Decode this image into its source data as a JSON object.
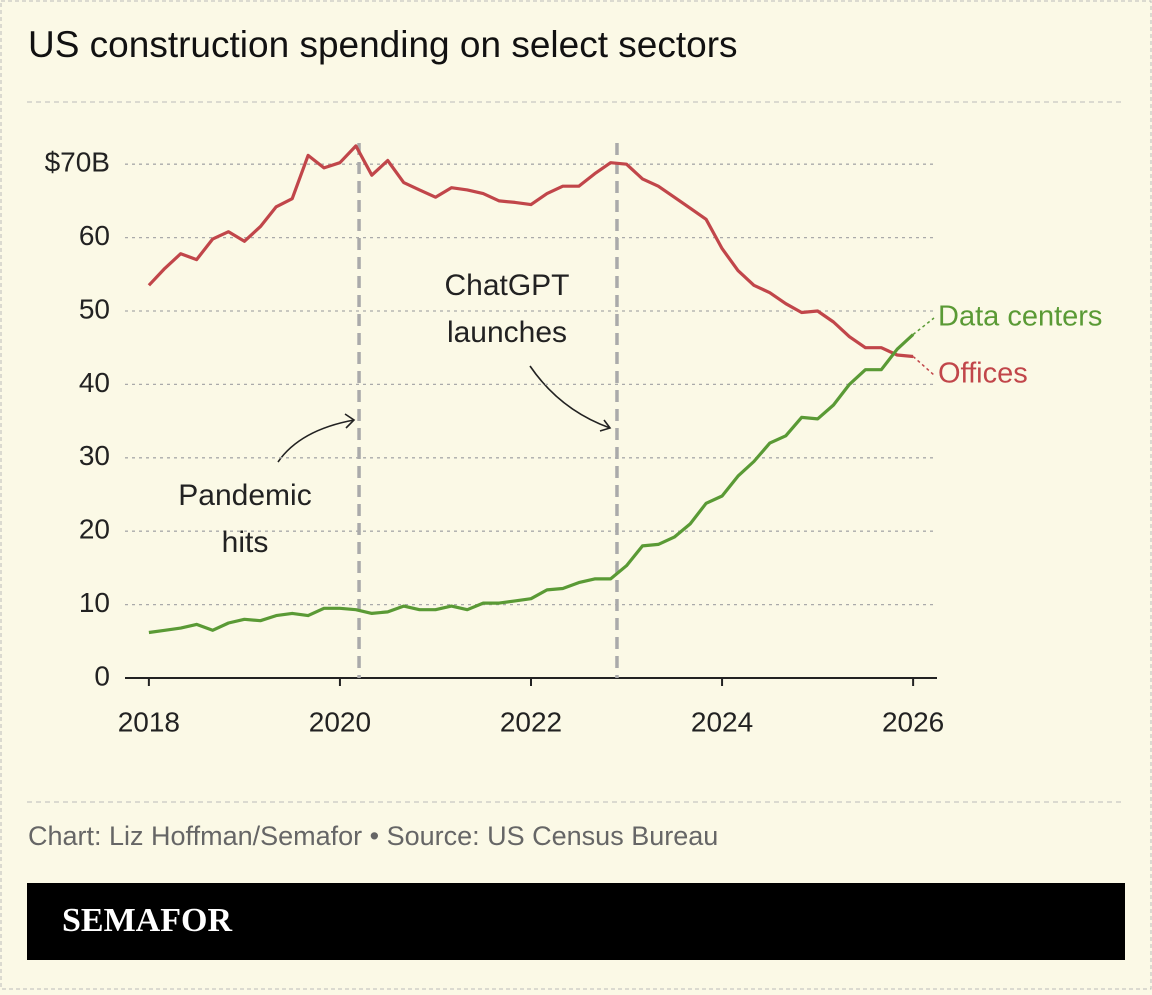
{
  "chart_data": {
    "type": "line",
    "title": "US construction spending on select sectors",
    "source": "Chart: Liz Hoffman/Semafor • Source: US Census Bureau",
    "brand": "SEMAFOR",
    "x": [
      2018,
      2018.167,
      2018.333,
      2018.5,
      2018.667,
      2018.833,
      2019,
      2019.167,
      2019.333,
      2019.5,
      2019.667,
      2019.833,
      2020,
      2020.167,
      2020.333,
      2020.5,
      2020.667,
      2020.833,
      2021,
      2021.167,
      2021.333,
      2021.5,
      2021.667,
      2021.833,
      2022,
      2022.167,
      2022.333,
      2022.5,
      2022.667,
      2022.833,
      2023,
      2023.167,
      2023.333,
      2023.5,
      2023.667,
      2023.833,
      2024,
      2024.167,
      2024.333,
      2024.5,
      2024.667,
      2024.833,
      2025,
      2025.167,
      2025.333,
      2025.5,
      2025.667,
      2025.833,
      2026
    ],
    "series": [
      {
        "name": "Offices",
        "color": "#c1464a",
        "values": [
          53.5,
          55.8,
          57.8,
          57,
          59.8,
          60.8,
          59.5,
          61.5,
          64.2,
          65.3,
          71.2,
          69.5,
          70.2,
          72.5,
          68.5,
          70.5,
          67.5,
          66.5,
          65.5,
          66.8,
          66.5,
          66,
          65,
          64.8,
          64.5,
          66,
          67,
          67,
          68.7,
          70.2,
          70,
          68,
          67,
          65.5,
          64,
          62.5,
          58.5,
          55.5,
          53.5,
          52.5,
          51,
          49.8,
          50,
          48.5,
          46.5,
          45,
          45,
          44,
          43.8
        ]
      },
      {
        "name": "Data centers",
        "color": "#5a9a35",
        "values": [
          6.2,
          6.5,
          6.8,
          7.3,
          6.5,
          7.5,
          8,
          7.8,
          8.5,
          8.8,
          8.5,
          9.5,
          9.5,
          9.3,
          8.8,
          9,
          9.8,
          9.3,
          9.3,
          9.8,
          9.3,
          10.2,
          10.2,
          10.5,
          10.8,
          12,
          12.2,
          13,
          13.5,
          13.5,
          15.3,
          18,
          18.2,
          19.2,
          21,
          23.8,
          24.8,
          27.5,
          29.5,
          32,
          33,
          35.5,
          35.3,
          37.2,
          40,
          42,
          42,
          44.8,
          46.8
        ]
      }
    ],
    "xlim": [
      2017.75,
      2026.25
    ],
    "xticks": [
      2018,
      2020,
      2022,
      2024,
      2026
    ],
    "ylim": [
      0,
      75
    ],
    "yticks": [
      0,
      10,
      20,
      30,
      40,
      50,
      60,
      {
        "value": 70,
        "label": "$70B"
      }
    ],
    "grid": true,
    "annotations": [
      {
        "text": [
          "Pandemic",
          "hits"
        ],
        "x": 2020.2
      },
      {
        "text": [
          "ChatGPT",
          "launches"
        ],
        "x": 2022.9
      }
    ]
  }
}
